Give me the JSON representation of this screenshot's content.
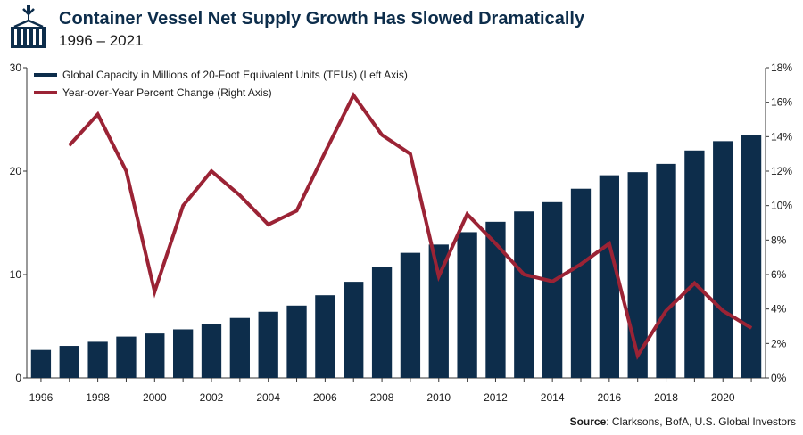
{
  "header": {
    "title": "Container Vessel Net Supply Growth Has Slowed Dramatically",
    "subtitle": "1996 – 2021",
    "logo_icon": "container-crane-icon"
  },
  "source": {
    "label": "Source",
    "text": ": Clarksons, BofA, U.S. Global Investors"
  },
  "colors": {
    "navy": "#0d2d4b",
    "maroon": "#9b2335"
  },
  "chart_data": {
    "type": "bar",
    "title": "Container Vessel Net Supply Growth Has Slowed Dramatically",
    "subtitle": "1996 – 2021",
    "x": [
      1996,
      1997,
      1998,
      1999,
      2000,
      2001,
      2002,
      2003,
      2004,
      2005,
      2006,
      2007,
      2008,
      2009,
      2010,
      2011,
      2012,
      2013,
      2014,
      2015,
      2016,
      2017,
      2018,
      2019,
      2020,
      2021
    ],
    "x_tick_labels": [
      "1996",
      "1998",
      "2000",
      "2002",
      "2004",
      "2006",
      "2008",
      "2010",
      "2012",
      "2014",
      "2016",
      "2018",
      "2020"
    ],
    "left_axis": {
      "ylim": [
        0,
        30
      ],
      "ticks": [
        "0",
        "10",
        "20",
        "30"
      ]
    },
    "right_axis": {
      "ylim": [
        0,
        18
      ],
      "ticks": [
        "0%",
        "2%",
        "4%",
        "6%",
        "8%",
        "10%",
        "12%",
        "14%",
        "16%",
        "18%"
      ]
    },
    "legend_position": "top-left",
    "series": [
      {
        "name": "Global Capacity in Millions of 20-Foot Equivalent Units (TEUs) (Left Axis)",
        "type": "bar",
        "axis": "left",
        "color": "#0d2d4b",
        "values": [
          2.7,
          3.1,
          3.5,
          4.0,
          4.3,
          4.7,
          5.2,
          5.8,
          6.4,
          7.0,
          8.0,
          9.3,
          10.7,
          12.1,
          12.9,
          14.1,
          15.1,
          16.1,
          17.0,
          18.3,
          19.6,
          19.9,
          20.7,
          22.0,
          22.9,
          23.5
        ]
      },
      {
        "name": "Year-over-Year Percent Change (Right Axis)",
        "type": "line",
        "axis": "right",
        "color": "#9b2335",
        "values": [
          null,
          13.5,
          15.3,
          12.0,
          5.0,
          10.0,
          12.0,
          10.6,
          8.9,
          9.7,
          13.1,
          16.4,
          14.1,
          13.0,
          5.9,
          9.5,
          7.8,
          6.0,
          5.6,
          6.6,
          7.8,
          1.3,
          3.9,
          5.5,
          3.9,
          2.9
        ]
      }
    ]
  }
}
